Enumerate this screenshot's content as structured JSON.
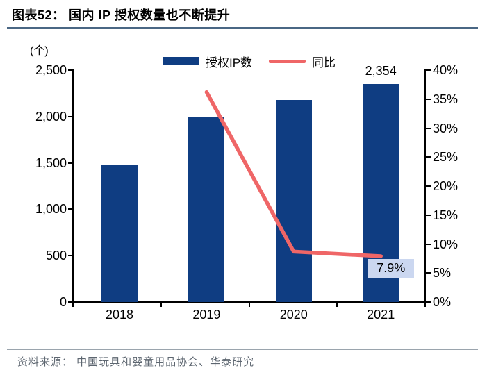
{
  "header": {
    "title": "图表52：  国内 IP 授权数量也不断提升"
  },
  "legend": {
    "items": [
      {
        "label": "授权IP数",
        "type": "bar",
        "color": "#0f3d82"
      },
      {
        "label": "同比",
        "type": "line",
        "color": "#ef6667"
      }
    ]
  },
  "chart_data": {
    "type": "bar+line",
    "categories": [
      "2018",
      "2019",
      "2020",
      "2021"
    ],
    "series": [
      {
        "name": "授权IP数",
        "type": "bar",
        "axis": "left",
        "color": "#0f3d82",
        "values": [
          1473,
          2000,
          2180,
          2354
        ]
      },
      {
        "name": "同比",
        "type": "line",
        "axis": "right",
        "color": "#ef6667",
        "values": [
          null,
          36.2,
          8.7,
          7.9
        ]
      }
    ],
    "left_axis": {
      "unit": "(个)",
      "min": 0,
      "max": 2500,
      "tick_step": 500,
      "tick_labels": [
        "2,500",
        "2,000",
        "1,500",
        "1,000",
        "500",
        "0"
      ]
    },
    "right_axis": {
      "min": 0,
      "max": 40,
      "tick_step": 5,
      "tick_labels": [
        "40%",
        "35%",
        "30%",
        "25%",
        "20%",
        "15%",
        "10%",
        "5%",
        "0%"
      ]
    },
    "annotations": [
      {
        "text": "2,354",
        "target": "bar",
        "category": "2021",
        "background": "none"
      },
      {
        "text": "7.9%",
        "target": "line",
        "category": "2021",
        "background": "#cbd7f0"
      }
    ],
    "grid": false,
    "legend_position": "top-center"
  },
  "footer": {
    "source": "资料来源： 中国玩具和婴童用品协会、华泰研究"
  }
}
